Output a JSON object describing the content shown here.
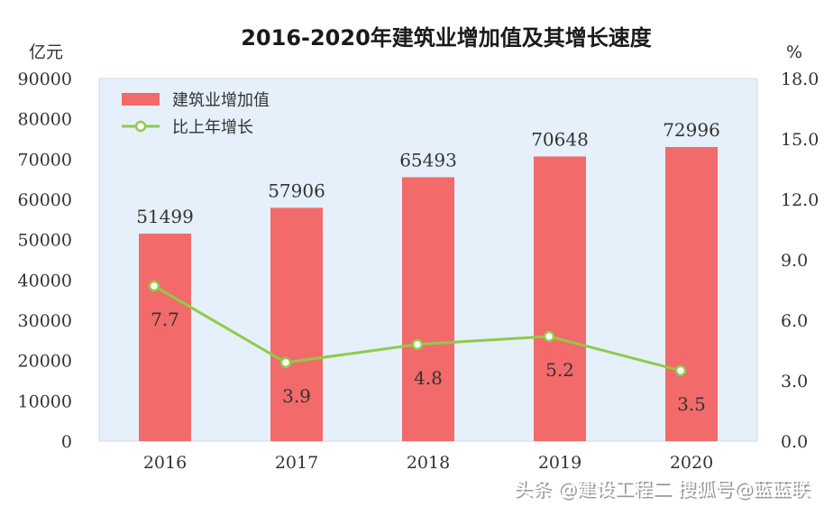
{
  "chart_data": {
    "type": "bar",
    "title": "2016-2020年建筑业增加值及其增长速度",
    "left_unit": "亿元",
    "right_unit": "%",
    "categories": [
      "2016",
      "2017",
      "2018",
      "2019",
      "2020"
    ],
    "series": [
      {
        "name": "建筑业增加值",
        "type": "bar",
        "axis": "left",
        "color": "#f26a6a",
        "values": [
          51499,
          57906,
          65493,
          70648,
          72996
        ]
      },
      {
        "name": "比上年增长",
        "type": "line",
        "axis": "right",
        "color": "#8fcb4a",
        "values": [
          7.7,
          3.9,
          4.8,
          5.2,
          3.5
        ],
        "labels": [
          "7.7",
          "3.9",
          "4.8",
          "5.2",
          "3.5"
        ]
      }
    ],
    "ylim_left": [
      0,
      90000
    ],
    "yticks_left": [
      "0",
      "10000",
      "20000",
      "30000",
      "40000",
      "50000",
      "60000",
      "70000",
      "80000",
      "90000"
    ],
    "ylim_right": [
      0,
      18
    ],
    "yticks_right": [
      "0.0",
      "3.0",
      "6.0",
      "9.0",
      "12.0",
      "15.0",
      "18.0"
    ],
    "legend_position": "top-left",
    "plot_background": "#e6f0fa",
    "grid": false
  },
  "watermark": {
    "text": "头条 @建设工程二 搜狐号@蓝蓝联"
  }
}
